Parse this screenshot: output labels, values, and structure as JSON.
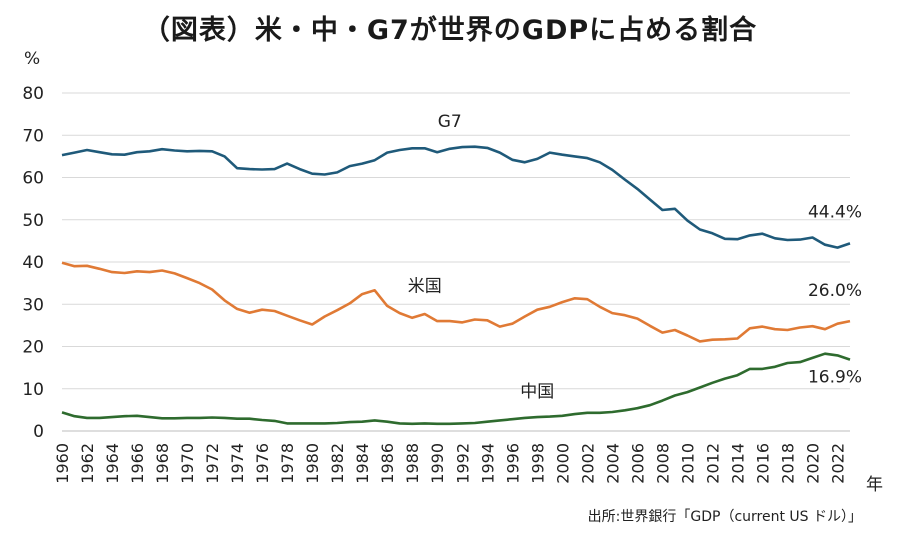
{
  "chart_data": {
    "type": "line",
    "title": "（図表）米・中・G7が世界のGDPに占める割合",
    "ylabel": "%",
    "xlabel": "年",
    "ylim": [
      0,
      80
    ],
    "yticks": [
      0,
      10,
      20,
      30,
      40,
      50,
      60,
      70,
      80
    ],
    "xlim": [
      1960,
      2023
    ],
    "xticks": [
      1960,
      1962,
      1964,
      1966,
      1968,
      1970,
      1972,
      1974,
      1976,
      1978,
      1980,
      1982,
      1984,
      1986,
      1988,
      1990,
      1992,
      1994,
      1996,
      1998,
      2000,
      2002,
      2004,
      2006,
      2008,
      2010,
      2012,
      2014,
      2016,
      2018,
      2020,
      2022
    ],
    "x": [
      1960,
      1961,
      1962,
      1963,
      1964,
      1965,
      1966,
      1967,
      1968,
      1969,
      1970,
      1971,
      1972,
      1973,
      1974,
      1975,
      1976,
      1977,
      1978,
      1979,
      1980,
      1981,
      1982,
      1983,
      1984,
      1985,
      1986,
      1987,
      1988,
      1989,
      1990,
      1991,
      1992,
      1993,
      1994,
      1995,
      1996,
      1997,
      1998,
      1999,
      2000,
      2001,
      2002,
      2003,
      2004,
      2005,
      2006,
      2007,
      2008,
      2009,
      2010,
      2011,
      2012,
      2013,
      2014,
      2015,
      2016,
      2017,
      2018,
      2019,
      2020,
      2021,
      2022,
      2023
    ],
    "series": [
      {
        "name": "G7",
        "color": "#1f5a7a",
        "label": "G7",
        "end_label": "44.4%",
        "values": [
          65.3,
          65.9,
          66.5,
          66.0,
          65.5,
          65.4,
          66.0,
          66.2,
          66.7,
          66.4,
          66.2,
          66.3,
          66.2,
          65.0,
          62.2,
          62.0,
          61.9,
          62.0,
          63.3,
          62.0,
          60.9,
          60.7,
          61.2,
          62.7,
          63.3,
          64.1,
          65.9,
          66.5,
          66.9,
          66.9,
          66.0,
          66.8,
          67.2,
          67.3,
          67.0,
          65.9,
          64.2,
          63.6,
          64.4,
          65.9,
          65.4,
          65.0,
          64.6,
          63.6,
          61.8,
          59.5,
          57.3,
          54.8,
          52.3,
          52.6,
          49.8,
          47.7,
          46.8,
          45.5,
          45.4,
          46.3,
          46.7,
          45.6,
          45.2,
          45.3,
          45.8,
          44.1,
          43.4,
          44.4
        ]
      },
      {
        "name": "米国",
        "color": "#e07a35",
        "label": "米国",
        "end_label": "26.0%",
        "values": [
          39.8,
          39.0,
          39.1,
          38.4,
          37.6,
          37.4,
          37.8,
          37.6,
          38.0,
          37.3,
          36.2,
          35.0,
          33.5,
          30.9,
          28.9,
          28.0,
          28.7,
          28.4,
          27.3,
          26.2,
          25.2,
          27.1,
          28.6,
          30.2,
          32.4,
          33.3,
          29.6,
          27.9,
          26.8,
          27.7,
          26.0,
          26.0,
          25.7,
          26.4,
          26.2,
          24.7,
          25.4,
          27.1,
          28.7,
          29.4,
          30.5,
          31.4,
          31.2,
          29.4,
          27.9,
          27.4,
          26.6,
          24.9,
          23.3,
          23.9,
          22.6,
          21.2,
          21.6,
          21.7,
          21.9,
          24.3,
          24.7,
          24.1,
          23.9,
          24.5,
          24.8,
          24.1,
          25.4,
          26.0
        ]
      },
      {
        "name": "中国",
        "color": "#2e6b2e",
        "label": "中国",
        "end_label": "16.9%",
        "values": [
          4.4,
          3.5,
          3.1,
          3.1,
          3.3,
          3.5,
          3.6,
          3.3,
          3.0,
          3.0,
          3.1,
          3.1,
          3.2,
          3.1,
          2.9,
          2.9,
          2.6,
          2.4,
          1.8,
          1.8,
          1.8,
          1.8,
          1.9,
          2.1,
          2.2,
          2.5,
          2.2,
          1.8,
          1.7,
          1.8,
          1.7,
          1.7,
          1.8,
          1.9,
          2.2,
          2.5,
          2.8,
          3.1,
          3.3,
          3.4,
          3.6,
          4.0,
          4.3,
          4.3,
          4.5,
          4.9,
          5.4,
          6.1,
          7.2,
          8.4,
          9.2,
          10.3,
          11.4,
          12.4,
          13.2,
          14.7,
          14.7,
          15.2,
          16.1,
          16.3,
          17.3,
          18.3,
          17.9,
          16.9
        ]
      }
    ],
    "source": "出所:世界銀行「GDP（current US ドル）」"
  }
}
